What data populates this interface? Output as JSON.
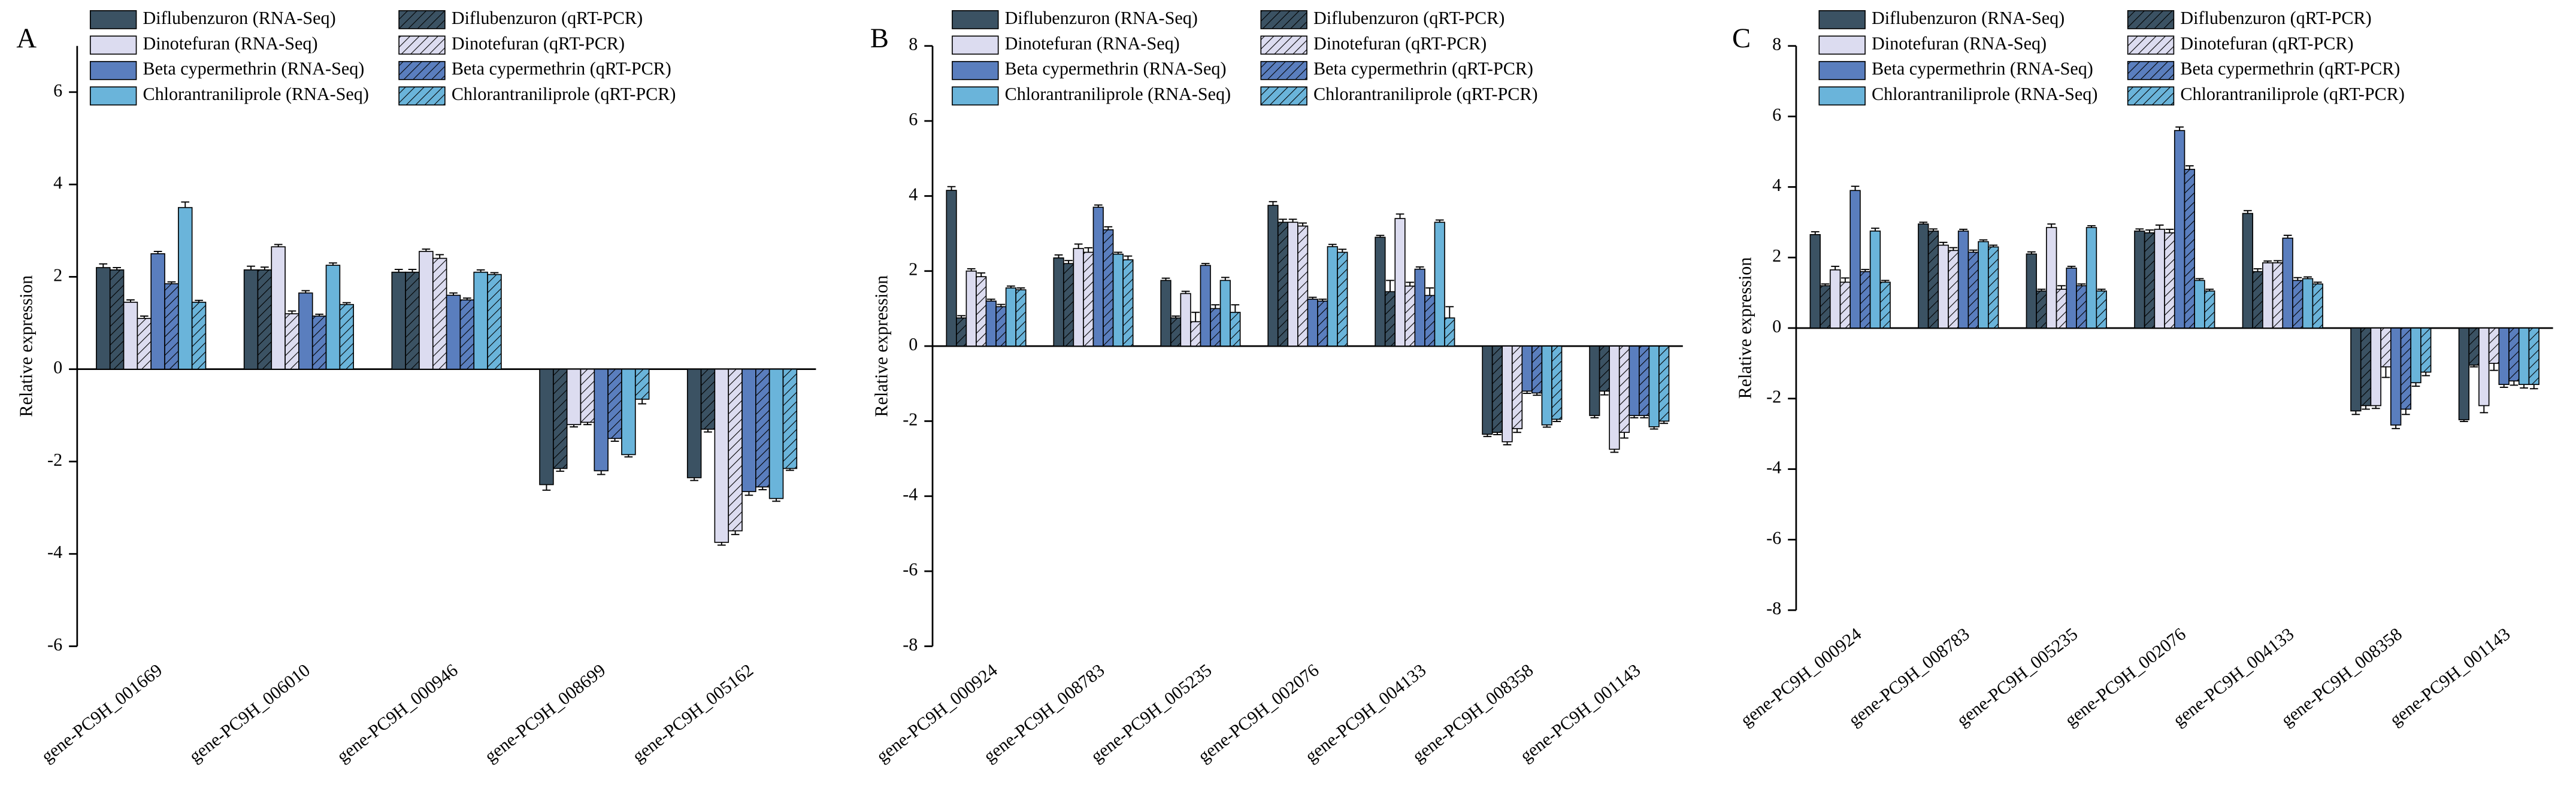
{
  "chart_data": [
    {
      "type": "bar",
      "panel_label": "A",
      "ylabel": "Relative expression",
      "categories": [
        "gene-PC9H_001669",
        "gene-PC9H_006010",
        "gene-PC9H_000946",
        "gene-PC9H_008699",
        "gene-PC9H_005162"
      ],
      "ylim": [
        -6,
        7
      ],
      "yticks": [
        -6,
        -4,
        -2,
        0,
        2,
        4,
        6
      ],
      "legend": "upper left",
      "series": [
        {
          "name": "Diflubenzuron (RNA-Seq)",
          "color": "#3b5263",
          "hatch": false,
          "values": [
            2.2,
            2.15,
            2.1,
            -2.5,
            -2.35
          ],
          "errors": [
            0.08,
            0.08,
            0.06,
            0.12,
            0.06
          ]
        },
        {
          "name": "Diflubenzuron (qRT-PCR)",
          "color": "#3b5263",
          "hatch": true,
          "values": [
            2.15,
            2.15,
            2.1,
            -2.15,
            -1.3
          ],
          "errors": [
            0.05,
            0.06,
            0.06,
            0.06,
            0.06
          ]
        },
        {
          "name": "Dinotefuran (RNA-Seq)",
          "color": "#dcdcf0",
          "hatch": false,
          "values": [
            1.45,
            2.65,
            2.55,
            -1.2,
            -3.75
          ],
          "errors": [
            0.05,
            0.05,
            0.05,
            0.05,
            0.06
          ]
        },
        {
          "name": "Dinotefuran (qRT-PCR)",
          "color": "#dcdcf0",
          "hatch": true,
          "values": [
            1.1,
            1.2,
            2.4,
            -1.15,
            -3.5
          ],
          "errors": [
            0.05,
            0.06,
            0.08,
            0.05,
            0.08
          ]
        },
        {
          "name": "Beta cypermethrin (RNA-Seq)",
          "color": "#5a7ebe",
          "hatch": false,
          "values": [
            2.5,
            1.65,
            1.6,
            -2.2,
            -2.65
          ],
          "errors": [
            0.05,
            0.05,
            0.05,
            0.08,
            0.08
          ]
        },
        {
          "name": "Beta cypermethrin (qRT-PCR)",
          "color": "#5a7ebe",
          "hatch": true,
          "values": [
            1.85,
            1.15,
            1.5,
            -1.5,
            -2.55
          ],
          "errors": [
            0.04,
            0.04,
            0.04,
            0.06,
            0.06
          ]
        },
        {
          "name": "Chlorantraniliprole (RNA-Seq)",
          "color": "#6ab4da",
          "hatch": false,
          "values": [
            3.5,
            2.25,
            2.1,
            -1.85,
            -2.8
          ],
          "errors": [
            0.12,
            0.05,
            0.05,
            0.05,
            0.06
          ]
        },
        {
          "name": "Chlorantraniliprole (qRT-PCR)",
          "color": "#6ab4da",
          "hatch": true,
          "values": [
            1.45,
            1.4,
            2.05,
            -0.65,
            -2.15
          ],
          "errors": [
            0.04,
            0.04,
            0.04,
            0.1,
            0.04
          ]
        }
      ]
    },
    {
      "type": "bar",
      "panel_label": "B",
      "ylabel": "Relative expression",
      "categories": [
        "gene-PC9H_000924",
        "gene-PC9H_008783",
        "gene-PC9H_005235",
        "gene-PC9H_002076",
        "gene-PC9H_004133",
        "gene-PC9H_008358",
        "gene-PC9H_001143"
      ],
      "ylim": [
        -8,
        8
      ],
      "yticks": [
        -8,
        -6,
        -4,
        -2,
        0,
        2,
        4,
        6,
        8
      ],
      "legend": "upper left",
      "series": [
        {
          "name": "Diflubenzuron (RNA-Seq)",
          "color": "#3b5263",
          "hatch": false,
          "values": [
            4.15,
            2.35,
            1.75,
            3.75,
            2.9,
            -2.35,
            -1.85
          ],
          "errors": [
            0.1,
            0.08,
            0.06,
            0.1,
            0.05,
            0.06,
            0.06
          ]
        },
        {
          "name": "Diflubenzuron (qRT-PCR)",
          "color": "#3b5263",
          "hatch": true,
          "values": [
            0.75,
            2.2,
            0.75,
            3.3,
            1.45,
            -2.3,
            -1.2
          ],
          "errors": [
            0.06,
            0.08,
            0.05,
            0.08,
            0.3,
            0.06,
            0.1
          ]
        },
        {
          "name": "Dinotefuran (RNA-Seq)",
          "color": "#dcdcf0",
          "hatch": false,
          "values": [
            2.0,
            2.6,
            1.4,
            3.3,
            3.4,
            -2.55,
            -2.75
          ],
          "errors": [
            0.06,
            0.12,
            0.06,
            0.08,
            0.12,
            0.08,
            0.08
          ]
        },
        {
          "name": "Dinotefuran (qRT-PCR)",
          "color": "#dcdcf0",
          "hatch": true,
          "values": [
            1.85,
            2.5,
            0.65,
            3.2,
            1.6,
            -2.2,
            -2.3
          ],
          "errors": [
            0.1,
            0.12,
            0.25,
            0.08,
            0.1,
            0.1,
            0.15
          ]
        },
        {
          "name": "Beta cypermethrin (RNA-Seq)",
          "color": "#5a7ebe",
          "hatch": false,
          "values": [
            1.2,
            3.7,
            2.15,
            1.25,
            2.05,
            -1.2,
            -1.85
          ],
          "errors": [
            0.05,
            0.06,
            0.05,
            0.05,
            0.06,
            0.06,
            0.06
          ]
        },
        {
          "name": "Beta cypermethrin (qRT-PCR)",
          "color": "#5a7ebe",
          "hatch": true,
          "values": [
            1.05,
            3.1,
            1.0,
            1.2,
            1.35,
            -1.25,
            -1.85
          ],
          "errors": [
            0.06,
            0.08,
            0.1,
            0.05,
            0.2,
            0.06,
            0.06
          ]
        },
        {
          "name": "Chlorantraniliprole (RNA-Seq)",
          "color": "#6ab4da",
          "hatch": false,
          "values": [
            1.55,
            2.45,
            1.75,
            2.65,
            3.3,
            -2.1,
            -2.15
          ],
          "errors": [
            0.05,
            0.05,
            0.08,
            0.06,
            0.06,
            0.06,
            0.06
          ]
        },
        {
          "name": "Chlorantraniliprole (qRT-PCR)",
          "color": "#6ab4da",
          "hatch": true,
          "values": [
            1.5,
            2.3,
            0.9,
            2.5,
            0.75,
            -1.95,
            -2.0
          ],
          "errors": [
            0.05,
            0.1,
            0.2,
            0.08,
            0.3,
            0.06,
            0.06
          ]
        }
      ]
    },
    {
      "type": "bar",
      "panel_label": "C",
      "ylabel": "Relative expression",
      "categories": [
        "gene-PC9H_000924",
        "gene-PC9H_008783",
        "gene-PC9H_005235",
        "gene-PC9H_002076",
        "gene-PC9H_004133",
        "gene-PC9H_008358",
        "gene-PC9H_001143"
      ],
      "ylim": [
        -8,
        8
      ],
      "yticks": [
        -8,
        -6,
        -4,
        -2,
        0,
        2,
        4,
        6,
        8
      ],
      "legend": "upper left",
      "series": [
        {
          "name": "Diflubenzuron (RNA-Seq)",
          "color": "#3b5263",
          "hatch": false,
          "values": [
            2.65,
            2.95,
            2.1,
            2.75,
            3.25,
            -2.35,
            -2.6
          ],
          "errors": [
            0.08,
            0.05,
            0.06,
            0.06,
            0.08,
            0.1,
            0.05
          ]
        },
        {
          "name": "Diflubenzuron (qRT-PCR)",
          "color": "#3b5263",
          "hatch": true,
          "values": [
            1.2,
            2.75,
            1.05,
            2.7,
            1.6,
            -2.2,
            -1.05
          ],
          "errors": [
            0.05,
            0.06,
            0.05,
            0.08,
            0.08,
            0.1,
            0.05
          ]
        },
        {
          "name": "Dinotefuran (RNA-Seq)",
          "color": "#dcdcf0",
          "hatch": false,
          "values": [
            1.65,
            2.35,
            2.85,
            2.8,
            1.85,
            -2.2,
            -2.2
          ],
          "errors": [
            0.1,
            0.08,
            0.1,
            0.12,
            0.05,
            0.08,
            0.2
          ]
        },
        {
          "name": "Dinotefuran (qRT-PCR)",
          "color": "#dcdcf0",
          "hatch": true,
          "values": [
            1.3,
            2.2,
            1.1,
            2.7,
            1.85,
            -1.1,
            -1.0
          ],
          "errors": [
            0.12,
            0.08,
            0.1,
            0.1,
            0.06,
            0.3,
            0.2
          ]
        },
        {
          "name": "Beta cypermethrin (RNA-Seq)",
          "color": "#5a7ebe",
          "hatch": false,
          "values": [
            3.9,
            2.75,
            1.7,
            5.6,
            2.55,
            -2.75,
            -1.6
          ],
          "errors": [
            0.12,
            0.05,
            0.05,
            0.1,
            0.08,
            0.1,
            0.08
          ]
        },
        {
          "name": "Beta cypermethrin (qRT-PCR)",
          "color": "#5a7ebe",
          "hatch": true,
          "values": [
            1.6,
            2.15,
            1.2,
            4.5,
            1.35,
            -2.3,
            -1.5
          ],
          "errors": [
            0.06,
            0.06,
            0.05,
            0.1,
            0.08,
            0.15,
            0.12
          ]
        },
        {
          "name": "Chlorantraniliprole (RNA-Seq)",
          "color": "#6ab4da",
          "hatch": false,
          "values": [
            2.75,
            2.45,
            2.85,
            1.35,
            1.4,
            -1.55,
            -1.6
          ],
          "errors": [
            0.08,
            0.05,
            0.05,
            0.05,
            0.05,
            0.1,
            0.1
          ]
        },
        {
          "name": "Chlorantraniliprole (qRT-PCR)",
          "color": "#6ab4da",
          "hatch": true,
          "values": [
            1.3,
            2.3,
            1.05,
            1.05,
            1.25,
            -1.25,
            -1.6
          ],
          "errors": [
            0.05,
            0.05,
            0.05,
            0.05,
            0.05,
            0.1,
            0.12
          ]
        }
      ]
    }
  ]
}
